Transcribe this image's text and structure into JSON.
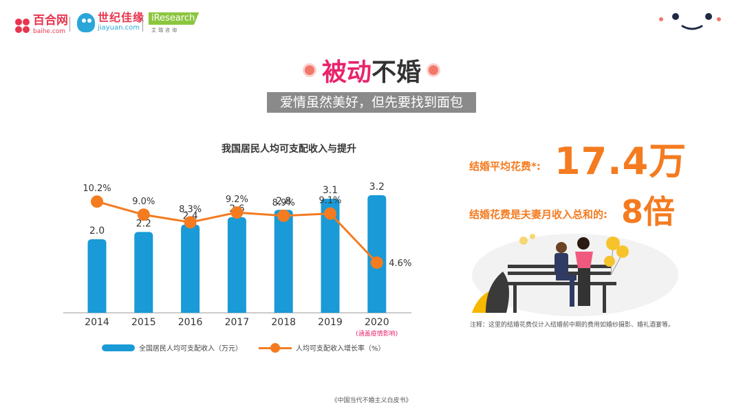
{
  "header": {
    "baihe_name": "百合网",
    "baihe_url": "baihe.com",
    "jiayuan_name": "世纪佳缘",
    "jiayuan_url": "jiayuan.com",
    "iresearch_name": "iResearch",
    "iresearch_sub": "艾瑞咨询"
  },
  "title": {
    "part_a": "被动",
    "part_b": "不婚"
  },
  "subtitle": "爱情虽然美好，但先要找到面包",
  "chart_data": {
    "type": "bar",
    "title": "我国居民人均可支配收入与提升",
    "categories": [
      "2014",
      "2015",
      "2016",
      "2017",
      "2018",
      "2019",
      "2020"
    ],
    "category_note": "(涵盖疫情影响)",
    "series": [
      {
        "name": "全国居民人均可支配收入（万元）",
        "type": "bar",
        "color": "#1a9ad6",
        "values": [
          2.0,
          2.2,
          2.4,
          2.6,
          2.8,
          3.1,
          3.2
        ],
        "labels": [
          "2.0",
          "2.2",
          "2.4",
          "2.6",
          "2.8",
          "3.1",
          "3.2"
        ]
      },
      {
        "name": "人均可支配收入增长率（%）",
        "type": "line",
        "color": "#f47b20",
        "values": [
          10.2,
          9.0,
          8.3,
          9.2,
          8.9,
          9.1,
          4.6
        ],
        "labels": [
          "10.2%",
          "9.0%",
          "8.3%",
          "9.2%",
          "8.9%",
          "9.1%",
          "4.6%"
        ]
      }
    ],
    "ylim_bar": [
      0,
      4.3
    ],
    "ylim_line": [
      0,
      14.5
    ],
    "grid": false,
    "legend": "bottom"
  },
  "right": {
    "cost_label": "结婚平均花费*:",
    "cost_value": "17.4万",
    "ratio_label": "结婚花费是夫妻月收入总和的:",
    "ratio_value": "8倍",
    "note": "注释：这里的结婚花费仅计入结婚前中期的费用如婚纱摄影、婚礼酒宴等。"
  },
  "footer": "《中国当代不婚主义白皮书》",
  "colors": {
    "accent_pink": "#e8246c",
    "accent_orange": "#f47b20",
    "bar_blue": "#1a9ad6"
  }
}
